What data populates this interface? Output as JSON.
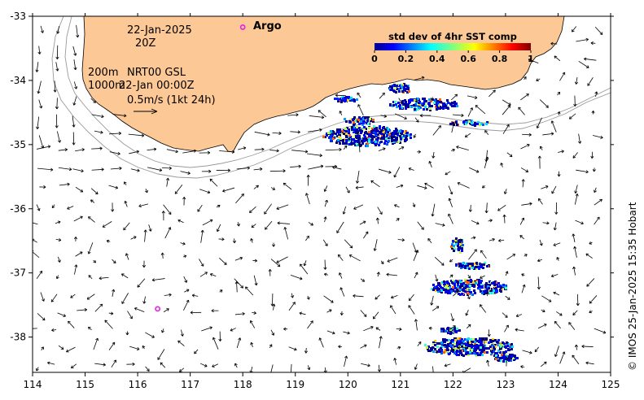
{
  "map": {
    "date": "22-Jan-2025",
    "hour": "20Z",
    "depth_line_1": "200m",
    "depth_line_2": "1000m",
    "product": "NRT00 GSL",
    "product_time": "22-Jan 00:00Z",
    "scale_label": "0.5m/s (1kt 24h)",
    "argo_label": "Argo",
    "credit": "© IMOS 25-Jan-2025 15:35 Hobart",
    "land_color": "#fcc896",
    "argo_color": "#e61ee6"
  },
  "axes": {
    "x_ticks": [
      "114",
      "115",
      "116",
      "117",
      "118",
      "119",
      "120",
      "121",
      "122",
      "123",
      "124",
      "125"
    ],
    "y_ticks": [
      "-33",
      "-34",
      "-35",
      "-36",
      "-37",
      "-38"
    ],
    "lon_range": [
      114,
      125
    ],
    "lat_range": [
      -38.55,
      -33
    ]
  },
  "colorbar": {
    "title": "std dev of 4hr SST comp",
    "ticks": [
      "0",
      "0.2",
      "0.4",
      "0.6",
      "0.8",
      "1"
    ]
  },
  "argo_floats": [
    {
      "lon": 118.0,
      "lat": -33.17
    },
    {
      "lon": 116.38,
      "lat": -37.56
    }
  ]
}
